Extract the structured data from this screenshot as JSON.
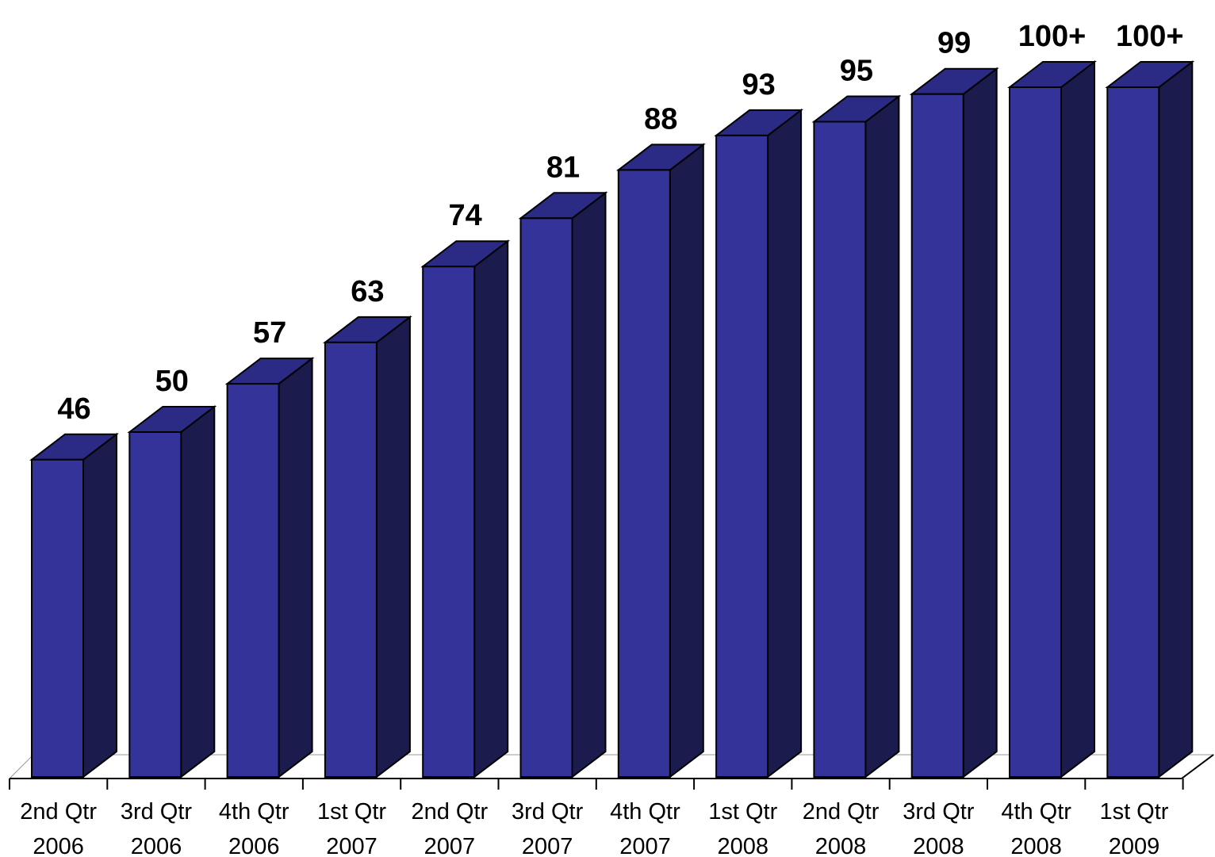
{
  "colors": {
    "bar_front": "#333399",
    "bar_top": "#2b2b85",
    "bar_side": "#1b1b4d",
    "outline": "#000000"
  },
  "chart_data": {
    "type": "bar",
    "style": "3d",
    "title": "",
    "xlabel": "",
    "ylabel": "",
    "categories": [
      [
        "2nd Qtr",
        "2006"
      ],
      [
        "3rd Qtr",
        "2006"
      ],
      [
        "4th Qtr",
        "2006"
      ],
      [
        "1st Qtr",
        "2007"
      ],
      [
        "2nd Qtr",
        "2007"
      ],
      [
        "3rd Qtr",
        "2007"
      ],
      [
        "4th Qtr",
        "2007"
      ],
      [
        "1st Qtr",
        "2008"
      ],
      [
        "2nd Qtr",
        "2008"
      ],
      [
        "3rd Qtr",
        "2008"
      ],
      [
        "4th Qtr",
        "2008"
      ],
      [
        "1st Qtr",
        "2009"
      ]
    ],
    "values": [
      46,
      50,
      57,
      63,
      74,
      81,
      88,
      93,
      95,
      99,
      100,
      100
    ],
    "data_labels": [
      "46",
      "50",
      "57",
      "63",
      "74",
      "81",
      "88",
      "93",
      "95",
      "99",
      "100+",
      "100+"
    ],
    "ylim": [
      0,
      100
    ],
    "grid": false,
    "legend": "none"
  }
}
